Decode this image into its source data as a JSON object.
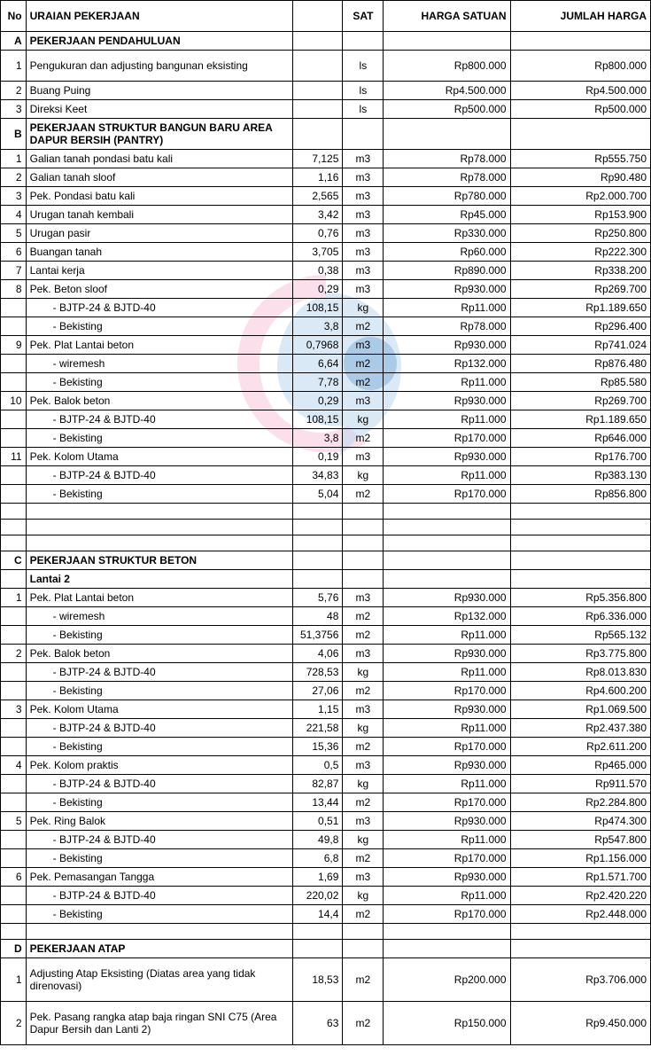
{
  "headers": {
    "no": "No",
    "uraian": "URAIAN PEKERJAAN",
    "sat": "SAT",
    "harga": "HARGA SATUAN",
    "jumlah": "JUMLAH HARGA"
  },
  "sections": [
    {
      "code": "A",
      "title": "PEKERJAAN PENDAHULUAN",
      "rows": [
        {
          "no": "1",
          "desc": "Pengukuran dan adjusting bangunan eksisting",
          "qty": "",
          "sat": "ls",
          "harga": "Rp800.000",
          "jumlah": "Rp800.000",
          "tall": true
        },
        {
          "no": "2",
          "desc": "Buang Puing",
          "qty": "",
          "sat": "ls",
          "harga": "Rp4.500.000",
          "jumlah": "Rp4.500.000"
        },
        {
          "no": "3",
          "desc": "Direksi Keet",
          "qty": "",
          "sat": "ls",
          "harga": "Rp500.000",
          "jumlah": "Rp500.000"
        }
      ]
    },
    {
      "code": "B",
      "title": "PEKERJAAN STRUKTUR  BANGUN BARU AREA DAPUR BERSIH (PANTRY)",
      "rows": [
        {
          "no": "1",
          "desc": "Galian tanah pondasi batu kali",
          "qty": "7,125",
          "sat": "m3",
          "harga": "Rp78.000",
          "jumlah": "Rp555.750"
        },
        {
          "no": "2",
          "desc": "Galian tanah sloof",
          "qty": "1,16",
          "sat": "m3",
          "harga": "Rp78.000",
          "jumlah": "Rp90.480"
        },
        {
          "no": "3",
          "desc": "Pek. Pondasi batu kali",
          "qty": "2,565",
          "sat": "m3",
          "harga": "Rp780.000",
          "jumlah": "Rp2.000.700"
        },
        {
          "no": "4",
          "desc": "Urugan tanah kembali",
          "qty": "3,42",
          "sat": "m3",
          "harga": "Rp45.000",
          "jumlah": "Rp153.900"
        },
        {
          "no": "5",
          "desc": "Urugan pasir",
          "qty": "0,76",
          "sat": "m3",
          "harga": "Rp330.000",
          "jumlah": "Rp250.800"
        },
        {
          "no": "6",
          "desc": "Buangan tanah",
          "qty": "3,705",
          "sat": "m3",
          "harga": "Rp60.000",
          "jumlah": "Rp222.300"
        },
        {
          "no": "7",
          "desc": "Lantai kerja",
          "qty": "0,38",
          "sat": "m3",
          "harga": "Rp890.000",
          "jumlah": "Rp338.200"
        },
        {
          "no": "8",
          "desc": "Pek. Beton sloof",
          "qty": "0,29",
          "sat": "m3",
          "harga": "Rp930.000",
          "jumlah": "Rp269.700"
        },
        {
          "no": "",
          "desc": "- BJTP-24 & BJTD-40",
          "indent": true,
          "qty": "108,15",
          "sat": "kg",
          "harga": "Rp11.000",
          "jumlah": "Rp1.189.650"
        },
        {
          "no": "",
          "desc": "- Bekisting",
          "indent": true,
          "qty": "3,8",
          "sat": "m2",
          "harga": "Rp78.000",
          "jumlah": "Rp296.400"
        },
        {
          "no": "9",
          "desc": "Pek. Plat Lantai beton",
          "qty": "0,7968",
          "sat": "m3",
          "harga": "Rp930.000",
          "jumlah": "Rp741.024"
        },
        {
          "no": "",
          "desc": "- wiremesh",
          "indent": true,
          "qty": "6,64",
          "sat": "m2",
          "harga": "Rp132.000",
          "jumlah": "Rp876.480"
        },
        {
          "no": "",
          "desc": "- Bekisting",
          "indent": true,
          "qty": "7,78",
          "sat": "m2",
          "harga": "Rp11.000",
          "jumlah": "Rp85.580"
        },
        {
          "no": "10",
          "desc": "Pek. Balok beton",
          "qty": "0,29",
          "sat": "m3",
          "harga": "Rp930.000",
          "jumlah": "Rp269.700"
        },
        {
          "no": "",
          "desc": "- BJTP-24 & BJTD-40",
          "indent": true,
          "qty": "108,15",
          "sat": "kg",
          "harga": "Rp11.000",
          "jumlah": "Rp1.189.650"
        },
        {
          "no": "",
          "desc": "- Bekisting",
          "indent": true,
          "qty": "3,8",
          "sat": "m2",
          "harga": "Rp170.000",
          "jumlah": "Rp646.000"
        },
        {
          "no": "11",
          "desc": "Pek. Kolom Utama",
          "qty": "0,19",
          "sat": "m3",
          "harga": "Rp930.000",
          "jumlah": "Rp176.700"
        },
        {
          "no": "",
          "desc": "- BJTP-24 & BJTD-40",
          "indent": true,
          "qty": "34,83",
          "sat": "kg",
          "harga": "Rp11.000",
          "jumlah": "Rp383.130"
        },
        {
          "no": "",
          "desc": "- Bekisting",
          "indent": true,
          "qty": "5,04",
          "sat": "m2",
          "harga": "Rp170.000",
          "jumlah": "Rp856.800"
        }
      ],
      "trailing_empty": 3
    },
    {
      "code": "C",
      "title": "PEKERJAAN STRUKTUR BETON",
      "subtitle": "Lantai 2",
      "rows": [
        {
          "no": "1",
          "desc": "Pek. Plat Lantai beton",
          "qty": "5,76",
          "sat": "m3",
          "harga": "Rp930.000",
          "jumlah": "Rp5.356.800"
        },
        {
          "no": "",
          "desc": "- wiremesh",
          "indent": true,
          "qty": "48",
          "sat": "m2",
          "harga": "Rp132.000",
          "jumlah": "Rp6.336.000"
        },
        {
          "no": "",
          "desc": "- Bekisting",
          "indent": true,
          "qty": "51,3756",
          "sat": "m2",
          "harga": "Rp11.000",
          "jumlah": "Rp565.132"
        },
        {
          "no": "2",
          "desc": "Pek. Balok beton",
          "qty": "4,06",
          "sat": "m3",
          "harga": "Rp930.000",
          "jumlah": "Rp3.775.800"
        },
        {
          "no": "",
          "desc": "- BJTP-24 & BJTD-40",
          "indent": true,
          "qty": "728,53",
          "sat": "kg",
          "harga": "Rp11.000",
          "jumlah": "Rp8.013.830"
        },
        {
          "no": "",
          "desc": "- Bekisting",
          "indent": true,
          "qty": "27,06",
          "sat": "m2",
          "harga": "Rp170.000",
          "jumlah": "Rp4.600.200"
        },
        {
          "no": "3",
          "desc": "Pek. Kolom Utama",
          "qty": "1,15",
          "sat": "m3",
          "harga": "Rp930.000",
          "jumlah": "Rp1.069.500"
        },
        {
          "no": "",
          "desc": "- BJTP-24 & BJTD-40",
          "indent": true,
          "qty": "221,58",
          "sat": "kg",
          "harga": "Rp11.000",
          "jumlah": "Rp2.437.380"
        },
        {
          "no": "",
          "desc": "- Bekisting",
          "indent": true,
          "qty": "15,36",
          "sat": "m2",
          "harga": "Rp170.000",
          "jumlah": "Rp2.611.200"
        },
        {
          "no": "4",
          "desc": "Pek. Kolom praktis",
          "qty": "0,5",
          "sat": "m3",
          "harga": "Rp930.000",
          "jumlah": "Rp465.000"
        },
        {
          "no": "",
          "desc": "- BJTP-24 & BJTD-40",
          "indent": true,
          "qty": "82,87",
          "sat": "kg",
          "harga": "Rp11.000",
          "jumlah": "Rp911.570"
        },
        {
          "no": "",
          "desc": "- Bekisting",
          "indent": true,
          "qty": "13,44",
          "sat": "m2",
          "harga": "Rp170.000",
          "jumlah": "Rp2.284.800"
        },
        {
          "no": "5",
          "desc": "Pek. Ring Balok",
          "qty": "0,51",
          "sat": "m3",
          "harga": "Rp930.000",
          "jumlah": "Rp474.300"
        },
        {
          "no": "",
          "desc": "- BJTP-24 & BJTD-40",
          "indent": true,
          "qty": "49,8",
          "sat": "kg",
          "harga": "Rp11.000",
          "jumlah": "Rp547.800"
        },
        {
          "no": "",
          "desc": "- Bekisting",
          "indent": true,
          "qty": "6,8",
          "sat": "m2",
          "harga": "Rp170.000",
          "jumlah": "Rp1.156.000"
        },
        {
          "no": "6",
          "desc": "Pek. Pemasangan Tangga",
          "qty": "1,69",
          "sat": "m3",
          "harga": "Rp930.000",
          "jumlah": "Rp1.571.700"
        },
        {
          "no": "",
          "desc": "- BJTP-24 & BJTD-40",
          "indent": true,
          "qty": "220,02",
          "sat": "kg",
          "harga": "Rp11.000",
          "jumlah": "Rp2.420.220"
        },
        {
          "no": "",
          "desc": "- Bekisting",
          "indent": true,
          "qty": "14,4",
          "sat": "m2",
          "harga": "Rp170.000",
          "jumlah": "Rp2.448.000"
        }
      ],
      "trailing_empty": 1
    },
    {
      "code": "D",
      "title": "PEKERJAAN ATAP",
      "rows": [
        {
          "no": "1",
          "desc": "Adjusting Atap Eksisting (Diatas area yang tidak direnovasi)",
          "qty": "18,53",
          "sat": "m2",
          "harga": "Rp200.000",
          "jumlah": "Rp3.706.000",
          "tall": true
        },
        {
          "no": "2",
          "desc": "Pek. Pasang rangka atap baja ringan SNI C75 (Area Dapur Bersih dan Lanti 2)",
          "qty": "63",
          "sat": "m2",
          "harga": "Rp150.000",
          "jumlah": "Rp9.450.000",
          "tall": true
        }
      ]
    }
  ]
}
